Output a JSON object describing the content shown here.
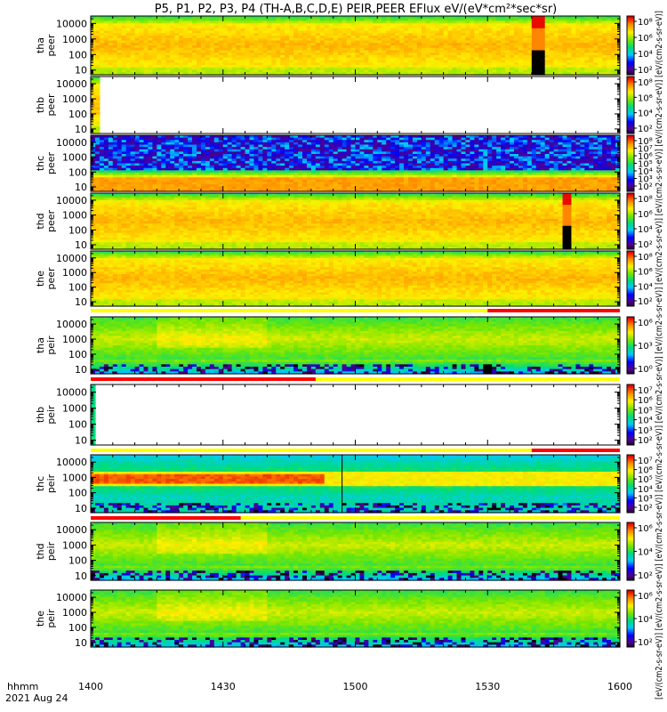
{
  "title": "P5, P1, P2, P3, P4 (TH-A,B,C,D,E) PEIR,PEER EFlux eV/(eV*cm²*sec*sr)",
  "colorbar_label": "[eV/(cm2-s-sr-eV)] [eV/(cm2-s-sr-eV)] [eV/(cm2-s-sr-eV)] [eV/(cm2-s-sr-eV)] [eV/(cm2-s-sr-eV)] [eV/(cm2-s-sr-eV)] [eV/(cm2-s-sr-eV)] [eV/(cm2-s-sr-eV)] [eV/(cm2-s-sr-eV)] [eV/(cm2-s-sr-eV)]",
  "time_label": "hhmm",
  "date_label": "2021 Aug 24",
  "chart_data": {
    "type": "heatmap",
    "x_axis": {
      "ticks": [
        "1400",
        "1430",
        "1500",
        "1530",
        "1600"
      ],
      "range": [
        "14:00",
        "16:00"
      ]
    },
    "y_axis_scale": "log",
    "y_ticks": [
      "10",
      "100",
      "1000",
      "10000"
    ],
    "y_range_eV": [
      5,
      30000
    ],
    "colormap": "rainbow",
    "panels": [
      {
        "label": [
          "tha",
          "peer"
        ],
        "cb_ticks": [
          "10²",
          "10⁴",
          "10⁶",
          "10⁸"
        ],
        "cb_range": [
          1,
          9
        ],
        "coverage": [
          [
            0,
            120
          ]
        ],
        "gaps": [
          [
            100,
            102.5
          ]
        ],
        "pattern": "electron",
        "flag_bar": null
      },
      {
        "label": [
          "thb",
          "peer"
        ],
        "cb_ticks": [
          "10²",
          "10⁴",
          "10⁶",
          "10⁸"
        ],
        "cb_range": [
          1,
          9
        ],
        "coverage": [
          [
            0,
            1.5
          ]
        ],
        "gaps": [],
        "pattern": "thb_electron",
        "flag_bar": null
      },
      {
        "label": [
          "thc",
          "peer"
        ],
        "cb_ticks": [
          "10²",
          "10³",
          "10⁴",
          "10⁵",
          "10⁶",
          "10⁷",
          "10⁸"
        ],
        "cb_range": [
          1.5,
          8.5
        ],
        "coverage": [
          [
            0,
            120
          ]
        ],
        "gaps": [],
        "pattern": "thc_electron",
        "flag_bar": null
      },
      {
        "label": [
          "thd",
          "peer"
        ],
        "cb_ticks": [
          "10²",
          "10⁴",
          "10⁶",
          "10⁸"
        ],
        "cb_range": [
          1,
          9
        ],
        "coverage": [
          [
            0,
            120
          ]
        ],
        "gaps": [
          [
            107,
            109
          ]
        ],
        "pattern": "electron",
        "flag_bar": null
      },
      {
        "label": [
          "the",
          "peer"
        ],
        "cb_ticks": [
          "10²",
          "10⁴",
          "10⁶",
          "10⁸"
        ],
        "cb_range": [
          1,
          9
        ],
        "coverage": [
          [
            0,
            120
          ]
        ],
        "gaps": [],
        "pattern": "electron",
        "flag_bar": [
          [
            90,
            120
          ]
        ]
      },
      {
        "label": [
          "tha",
          "peir"
        ],
        "cb_ticks": [
          "10⁰",
          "10³",
          "10⁶"
        ],
        "cb_range": [
          0,
          8
        ],
        "coverage": [
          [
            0,
            120
          ]
        ],
        "gaps": [
          [
            89,
            91
          ]
        ],
        "pattern": "ion",
        "flag_bar": null
      },
      {
        "label": [
          "thb",
          "peir"
        ],
        "cb_ticks": [
          "10²",
          "10³",
          "10⁴",
          "10⁵",
          "10⁶",
          "10⁷"
        ],
        "cb_range": [
          1.5,
          7.5
        ],
        "coverage": [
          [
            0,
            0.4
          ]
        ],
        "gaps": [],
        "pattern": "thb_ion",
        "flag_bar": [
          [
            0,
            51
          ]
        ]
      },
      {
        "label": [
          "thc",
          "peir"
        ],
        "cb_ticks": [
          "10²",
          "10³",
          "10⁴",
          "10⁵",
          "10⁶",
          "10⁷"
        ],
        "cb_range": [
          1.5,
          7.5
        ],
        "coverage": [
          [
            0,
            120
          ]
        ],
        "gaps": [],
        "pattern": "thc_ion",
        "flag_bar": [
          [
            100,
            120
          ]
        ]
      },
      {
        "label": [
          "thd",
          "peir"
        ],
        "cb_ticks": [
          "10²",
          "10⁴",
          "10⁶"
        ],
        "cb_range": [
          1,
          7
        ],
        "coverage": [
          [
            0,
            120
          ]
        ],
        "gaps": [
          [
            106,
            107
          ]
        ],
        "pattern": "ion",
        "flag_bar": [
          [
            0,
            34
          ]
        ]
      },
      {
        "label": [
          "the",
          "peir"
        ],
        "cb_ticks": [
          "10²",
          "10⁴",
          "10⁶"
        ],
        "cb_range": [
          1,
          7
        ],
        "coverage": [
          [
            0,
            120
          ]
        ],
        "gaps": [],
        "pattern": "ion",
        "flag_bar": null
      }
    ],
    "flag_colors": {
      "bad": "#ff0000",
      "ok": "#ffff00"
    }
  }
}
